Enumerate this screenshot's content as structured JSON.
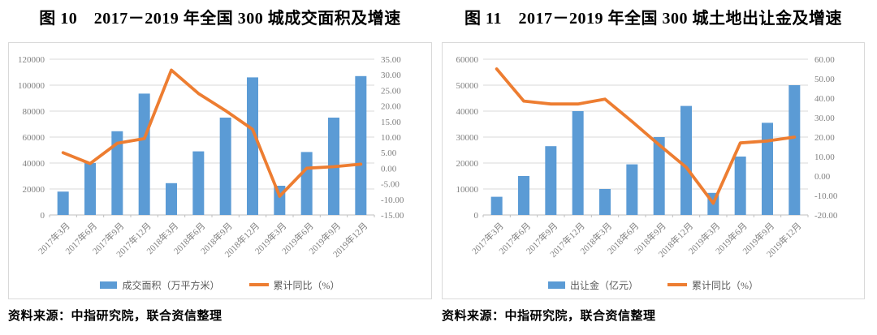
{
  "chart_data": [
    {
      "type": "combo-bar-line",
      "title": "图 10　2017－2019 年全国 300 城成交面积及增速",
      "source": "资料来源：中指研究院，联合资信整理",
      "categories": [
        "2017年3月",
        "2017年6月",
        "2017年9月",
        "2017年12月",
        "2018年3月",
        "2018年6月",
        "2018年9月",
        "2018年12月",
        "2019年3月",
        "2019年6月",
        "2019年9月",
        "2019年12月"
      ],
      "series": [
        {
          "name": "成交面积（万平方米）",
          "type": "bar",
          "axis": "left",
          "color": "#5B9BD5",
          "values": [
            18000,
            40000,
            64500,
            93500,
            24500,
            49000,
            75000,
            106000,
            22500,
            48500,
            75000,
            107000
          ]
        },
        {
          "name": "累计同比（%）",
          "type": "line",
          "axis": "right",
          "color": "#ED7D31",
          "values": [
            5,
            1.5,
            8,
            9.5,
            31.5,
            24,
            18.5,
            12.5,
            -9,
            0,
            0.5,
            1.3
          ]
        }
      ],
      "left_axis": {
        "min": 0,
        "max": 120000,
        "step": 20000,
        "tick_values": [
          0,
          20000,
          40000,
          60000,
          80000,
          100000,
          120000
        ],
        "tick_labels": [
          "0",
          "20000",
          "40000",
          "60000",
          "80000",
          "100000",
          "120000"
        ]
      },
      "right_axis": {
        "min": -15,
        "max": 35,
        "step": 5,
        "tick_values": [
          -15,
          -10,
          -5,
          0,
          5,
          10,
          15,
          20,
          25,
          30,
          35
        ],
        "tick_labels": [
          "-15.00",
          "-10.00",
          "-5.00",
          "0.00",
          "5.00",
          "10.00",
          "15.00",
          "20.00",
          "25.00",
          "30.00",
          "35.00"
        ]
      },
      "grid": true,
      "legend_position": "bottom",
      "colors": {
        "grid": "#D9D9D9",
        "axis": "#BFBFBF",
        "tick_text": "#7F7F7F"
      }
    },
    {
      "type": "combo-bar-line",
      "title": "图 11　2017－2019 年全国 300 城土地出让金及增速",
      "source": "资料来源：中指研究院，联合资信整理",
      "categories": [
        "2017年3月",
        "2017年6月",
        "2017年9月",
        "2017年12月",
        "2018年3月",
        "2018年6月",
        "2018年9月",
        "2018年12月",
        "2019年3月",
        "2019年6月",
        "2019年9月",
        "2019年12月"
      ],
      "series": [
        {
          "name": "出让金（亿元）",
          "type": "bar",
          "axis": "left",
          "color": "#5B9BD5",
          "values": [
            7000,
            15000,
            26500,
            40000,
            10000,
            19500,
            30000,
            42000,
            8500,
            22500,
            35500,
            50000
          ]
        },
        {
          "name": "累计同比（%）",
          "type": "line",
          "axis": "right",
          "color": "#ED7D31",
          "values": [
            55,
            38.5,
            37,
            37,
            39.5,
            28,
            16,
            4.5,
            -14,
            17,
            18,
            20
          ]
        }
      ],
      "left_axis": {
        "min": 0,
        "max": 60000,
        "step": 10000,
        "tick_values": [
          0,
          10000,
          20000,
          30000,
          40000,
          50000,
          60000
        ],
        "tick_labels": [
          "0",
          "10000",
          "20000",
          "30000",
          "40000",
          "50000",
          "60000"
        ]
      },
      "right_axis": {
        "min": -20,
        "max": 60,
        "step": 10,
        "tick_values": [
          -20,
          -10,
          0,
          10,
          20,
          30,
          40,
          50,
          60
        ],
        "tick_labels": [
          "-20.00",
          "-10.00",
          "0.00",
          "10.00",
          "20.00",
          "30.00",
          "40.00",
          "50.00",
          "60.00"
        ]
      },
      "grid": true,
      "legend_position": "bottom",
      "colors": {
        "grid": "#D9D9D9",
        "axis": "#BFBFBF",
        "tick_text": "#7F7F7F"
      }
    }
  ]
}
